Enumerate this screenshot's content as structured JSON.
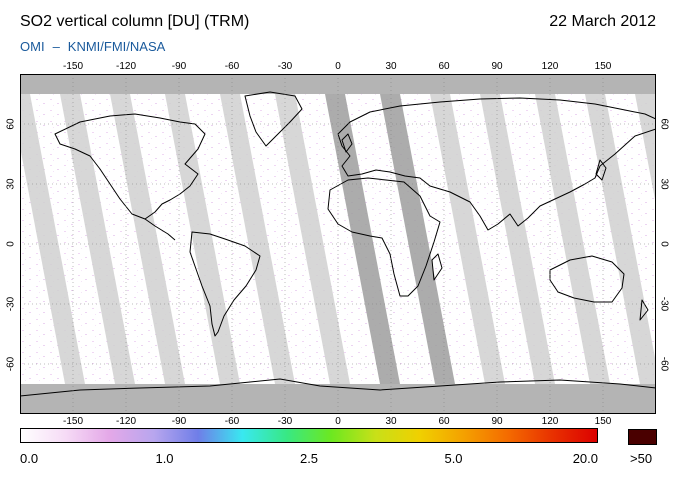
{
  "header": {
    "title": "SO2 vertical column [DU] (TRM)",
    "date": "22 March 2012",
    "source_instrument": "OMI",
    "source_separator": "–",
    "source_agencies": "KNMI/FMI/NASA"
  },
  "map": {
    "lon_ticks": [
      "-150",
      "-120",
      "-90",
      "-60",
      "-30",
      "0",
      "30",
      "60",
      "90",
      "120",
      "150"
    ],
    "lat_ticks": [
      "60",
      "30",
      "0",
      "-30",
      "-60"
    ],
    "colors": {
      "background": "#ffffff",
      "no_data": "#b4b4b4",
      "swath_gap": "#d0d0d0",
      "overlap_swath": "#9e9e9e",
      "coastline": "#000000"
    }
  },
  "colorbar": {
    "labels": [
      "0.0",
      "1.0",
      "2.5",
      "5.0",
      "20.0"
    ],
    "overflow_label": ">50",
    "overflow_color": "#4a0000",
    "stops": [
      "#ffffff",
      "#f6dcf6",
      "#e4a8e8",
      "#b8a6ee",
      "#6f7ee8",
      "#39e8f0",
      "#38e884",
      "#6ce820",
      "#c8e018",
      "#f0d000",
      "#f4a000",
      "#f46a00",
      "#e83000",
      "#dc0000"
    ]
  }
}
